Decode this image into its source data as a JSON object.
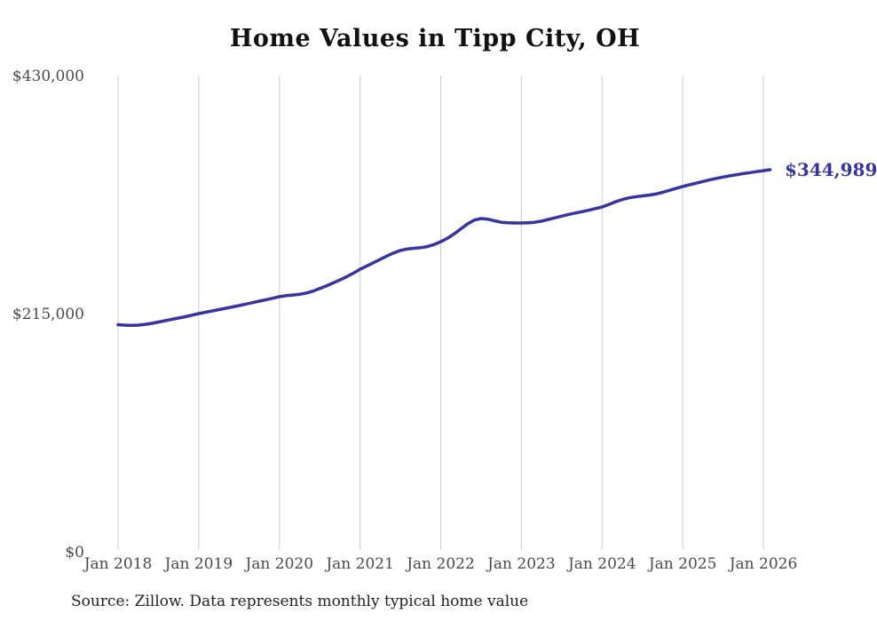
{
  "chart_data": {
    "type": "line",
    "title": "Home Values in Tipp City, OH",
    "xlabel": "",
    "ylabel": "",
    "ylim": [
      0,
      430000
    ],
    "grid": "vertical-only",
    "legend": "none",
    "x_start": "2018-01",
    "frequency": "monthly",
    "x_tick_labels": [
      "Jan 2018",
      "Jan 2019",
      "Jan 2020",
      "Jan 2021",
      "Jan 2022",
      "Jan 2023",
      "Jan 2024",
      "Jan 2025",
      "Jan 2026"
    ],
    "y_tick_values": [
      0,
      215000,
      430000
    ],
    "y_tick_labels": [
      "$0",
      "$215,000",
      "$430,000"
    ],
    "series_name": "Typical home value",
    "values": [
      205000,
      204600,
      204400,
      204600,
      205300,
      206200,
      207400,
      208600,
      209900,
      211000,
      212200,
      213600,
      215000,
      216200,
      217400,
      218600,
      219800,
      221000,
      222200,
      223600,
      224900,
      226200,
      227500,
      228900,
      230300,
      231200,
      231800,
      232400,
      233500,
      235300,
      237600,
      240100,
      242700,
      245400,
      248300,
      251500,
      255000,
      258000,
      261000,
      264000,
      267000,
      269800,
      272000,
      273300,
      274000,
      274500,
      275500,
      277300,
      279900,
      283000,
      287000,
      291500,
      296000,
      299500,
      300800,
      300300,
      298800,
      297500,
      297000,
      296800,
      296800,
      297000,
      297500,
      298500,
      300000,
      301500,
      303000,
      304500,
      305800,
      307000,
      308300,
      309800,
      311300,
      313500,
      316000,
      318000,
      319500,
      320500,
      321300,
      322000,
      323000,
      324500,
      326300,
      328000,
      329800,
      331300,
      332800,
      334300,
      335800,
      337100,
      338300,
      339400,
      340400,
      341400,
      342300,
      343200,
      344100,
      344989
    ],
    "final_value": 344989,
    "end_label": "$344,989",
    "source_note": "Source: Zillow. Data represents monthly typical home value",
    "colors": {
      "line": "#36349e",
      "end_label": "#36349e",
      "gridline": "#cccccc",
      "tick_label": "#4a4a4a",
      "title": "#111111",
      "source": "#222222"
    }
  }
}
